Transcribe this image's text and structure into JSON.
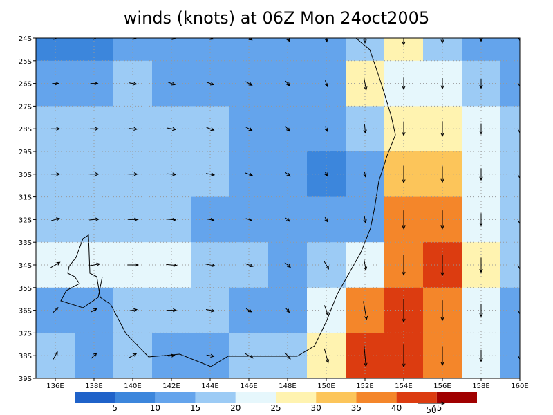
{
  "chart_data": {
    "type": "wind_map",
    "title": "winds (knots) at 06Z Mon 24oct2005",
    "xlim": [
      135,
      160
    ],
    "ylim": [
      -39,
      -24
    ],
    "xticks": [
      {
        "value": 136,
        "label": "136E"
      },
      {
        "value": 138,
        "label": "138E"
      },
      {
        "value": 140,
        "label": "140E"
      },
      {
        "value": 142,
        "label": "142E"
      },
      {
        "value": 144,
        "label": "144E"
      },
      {
        "value": 146,
        "label": "146E"
      },
      {
        "value": 148,
        "label": "148E"
      },
      {
        "value": 150,
        "label": "150E"
      },
      {
        "value": 152,
        "label": "152E"
      },
      {
        "value": 154,
        "label": "154E"
      },
      {
        "value": 156,
        "label": "156E"
      },
      {
        "value": 158,
        "label": "158E"
      },
      {
        "value": 160,
        "label": "160E"
      }
    ],
    "yticks": [
      {
        "value": -24,
        "label": "24S"
      },
      {
        "value": -25,
        "label": "25S"
      },
      {
        "value": -26,
        "label": "26S"
      },
      {
        "value": -27,
        "label": "27S"
      },
      {
        "value": -28,
        "label": "28S"
      },
      {
        "value": -29,
        "label": "29S"
      },
      {
        "value": -30,
        "label": "30S"
      },
      {
        "value": -31,
        "label": "31S"
      },
      {
        "value": -32,
        "label": "32S"
      },
      {
        "value": -33,
        "label": "33S"
      },
      {
        "value": -34,
        "label": "34S"
      },
      {
        "value": -35,
        "label": "35S"
      },
      {
        "value": -36,
        "label": "36S"
      },
      {
        "value": -37,
        "label": "37S"
      },
      {
        "value": -38,
        "label": "38S"
      },
      {
        "value": -39,
        "label": "39S"
      }
    ],
    "grid": true,
    "levels": [
      5,
      10,
      15,
      20,
      25,
      30,
      35,
      40,
      45
    ],
    "colors": [
      "#1f62c9",
      "#3c86dc",
      "#64a4ec",
      "#9ccbf5",
      "#e6f7fc",
      "#fff3b0",
      "#fcc55a",
      "#f4862a",
      "#dc3c10",
      "#a00000"
    ],
    "reference_vector": 50,
    "lons": [
      136,
      138,
      140,
      142,
      144,
      146,
      148,
      150,
      152,
      154,
      156,
      158,
      160
    ],
    "lats": [
      -24,
      -26,
      -28,
      -30,
      -32,
      -34,
      -36,
      -38
    ],
    "speed": [
      [
        5,
        8,
        12,
        14,
        12,
        14,
        14,
        14,
        18,
        25,
        18,
        12,
        10
      ],
      [
        12,
        14,
        15,
        14,
        14,
        14,
        12,
        12,
        25,
        22,
        20,
        18,
        12
      ],
      [
        16,
        16,
        16,
        16,
        15,
        14,
        12,
        10,
        16,
        25,
        28,
        20,
        16
      ],
      [
        16,
        17,
        17,
        16,
        16,
        14,
        12,
        8,
        10,
        32,
        30,
        22,
        16
      ],
      [
        16,
        18,
        18,
        16,
        14,
        12,
        10,
        10,
        12,
        35,
        35,
        24,
        16
      ],
      [
        20,
        22,
        20,
        20,
        18,
        16,
        14,
        18,
        20,
        38,
        40,
        28,
        16
      ],
      [
        14,
        12,
        16,
        18,
        16,
        12,
        10,
        20,
        35,
        44,
        38,
        24,
        14
      ],
      [
        16,
        14,
        16,
        12,
        14,
        18,
        16,
        28,
        40,
        42,
        36,
        22,
        14
      ]
    ],
    "direction": [
      [
        90,
        90,
        100,
        100,
        110,
        120,
        150,
        170,
        180,
        180,
        180,
        180,
        180
      ],
      [
        90,
        90,
        100,
        110,
        110,
        120,
        140,
        160,
        170,
        180,
        180,
        180,
        180
      ],
      [
        90,
        90,
        95,
        100,
        110,
        120,
        140,
        160,
        175,
        180,
        180,
        180,
        180
      ],
      [
        90,
        90,
        90,
        95,
        100,
        110,
        130,
        150,
        170,
        180,
        180,
        180,
        180
      ],
      [
        75,
        85,
        90,
        95,
        100,
        110,
        130,
        150,
        170,
        180,
        180,
        180,
        180
      ],
      [
        60,
        80,
        90,
        95,
        100,
        110,
        130,
        150,
        170,
        180,
        180,
        180,
        180
      ],
      [
        45,
        60,
        80,
        90,
        100,
        120,
        140,
        160,
        170,
        180,
        180,
        180,
        180
      ],
      [
        30,
        45,
        60,
        80,
        100,
        120,
        140,
        165,
        175,
        180,
        180,
        180,
        180
      ]
    ]
  }
}
